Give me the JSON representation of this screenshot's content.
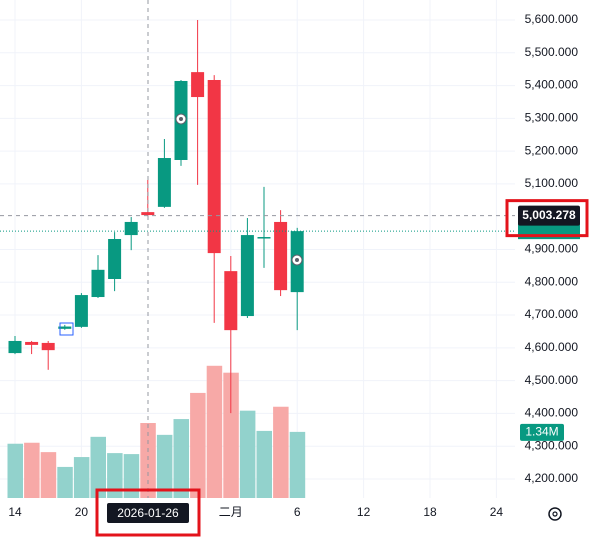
{
  "chart_data": {
    "type": "candlestick",
    "categories": [
      "14",
      null,
      null,
      null,
      "20",
      null,
      null,
      null,
      null,
      null,
      null,
      null,
      null,
      "二月",
      null,
      null,
      null,
      "6",
      null,
      null,
      null,
      "12",
      null,
      null,
      null,
      "18",
      null,
      null,
      null,
      "24",
      null
    ],
    "open": [
      4584,
      4618,
      4615,
      4658,
      4664,
      4755,
      4810,
      4944,
      5014,
      5030,
      5173,
      5441,
      5417,
      4834,
      4697,
      4935,
      4984,
      4770,
      null,
      null,
      null,
      null,
      null,
      null,
      null,
      null,
      null,
      null,
      null,
      null,
      null
    ],
    "high": [
      4636,
      4621,
      4621,
      4670,
      4767,
      4883,
      4953,
      4999,
      5112,
      5237,
      5417,
      5600,
      5432,
      4880,
      4996,
      5091,
      5020,
      4966,
      null,
      null,
      null,
      null,
      null,
      null,
      null,
      null,
      null,
      null,
      null,
      null,
      null
    ],
    "low": [
      4581,
      4581,
      4533,
      4655,
      4661,
      4752,
      4773,
      4898,
      5002,
      5027,
      5155,
      5097,
      4676,
      4401,
      4691,
      4844,
      4758,
      4654,
      null,
      null,
      null,
      null,
      null,
      null,
      null,
      null,
      null,
      null,
      null,
      null,
      null
    ],
    "close": [
      4621,
      4609,
      4593,
      4665,
      4761,
      4838,
      4932,
      4984,
      5005,
      5179,
      5414,
      5365,
      4889,
      4654,
      4944,
      4938,
      4776,
      4956,
      null,
      null,
      null,
      null,
      null,
      null,
      null,
      null,
      null,
      null,
      null,
      null,
      null
    ],
    "volume": [
      1100000,
      1120000,
      930000,
      630000,
      830000,
      1240000,
      910000,
      890000,
      1520000,
      1280000,
      1600000,
      2130000,
      2680000,
      2540000,
      1770000,
      1360000,
      1850000,
      1340000,
      null,
      null,
      null,
      null,
      null,
      null,
      null,
      null,
      null,
      null,
      null,
      null,
      null
    ],
    "volume_label": "1.34M",
    "vlim": [
      0,
      6000000
    ],
    "ylim": [
      4142,
      5661
    ],
    "yticks": [
      {
        "value": 4200,
        "label": "4,200.000"
      },
      {
        "value": 4300,
        "label": "4,300.000"
      },
      {
        "value": 4400,
        "label": "4,400.000"
      },
      {
        "value": 4500,
        "label": "4,500.000"
      },
      {
        "value": 4600,
        "label": "4,600.000"
      },
      {
        "value": 4700,
        "label": "4,700.000"
      },
      {
        "value": 4800,
        "label": "4,800.000"
      },
      {
        "value": 4900,
        "label": "4,900.000"
      },
      {
        "value": 5100,
        "label": "5,100.000"
      },
      {
        "value": 5200,
        "label": "5,200.000"
      },
      {
        "value": 5300,
        "label": "5,300.000"
      },
      {
        "value": 5400,
        "label": "5,400.000"
      },
      {
        "value": 5500,
        "label": "5,500.000"
      },
      {
        "value": 5600,
        "label": "5,600.000"
      }
    ],
    "crosshair_price": {
      "value": 5003.278,
      "label": "5,003.278"
    },
    "crosshair_date": "2026-01-26",
    "up_color": "#089981",
    "down_color": "#f23645",
    "volume_up_color": "#92d2cc",
    "volume_down_color": "#f7a9a7",
    "grid": true
  }
}
